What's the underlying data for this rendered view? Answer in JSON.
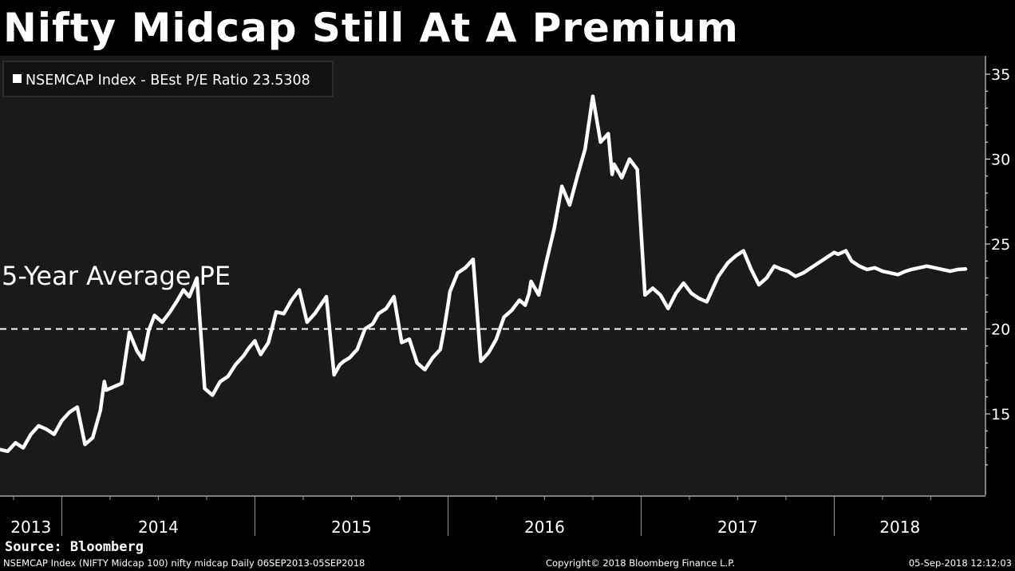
{
  "title": "Nifty Midcap Still At A Premium",
  "source": "Source: Bloomberg",
  "footer": {
    "left": "NSEMCAP Index (NIFTY Midcap 100) nifty midcap  Daily 06SEP2013-05SEP2018",
    "center": "Copyright© 2018 Bloomberg Finance L.P.",
    "right": "05-Sep-2018 12:12:03"
  },
  "colors": {
    "background": "#000000",
    "plot": "#1a1a1a",
    "line": "#ffffff"
  },
  "chart_data": {
    "type": "line",
    "title": "Nifty Midcap Still At A Premium",
    "ylim": [
      10,
      36
    ],
    "yticks": [
      15,
      20,
      25,
      30,
      35
    ],
    "grid": false,
    "legend": "top-left",
    "x_range": [
      2013.68,
      2018.68
    ],
    "year_labels": [
      "2013",
      "2014",
      "2015",
      "2016",
      "2017",
      "2018"
    ],
    "series": [
      {
        "name": "NSEMCAP Index - BEst P/E Ratio 23.5308",
        "last_value": 23.5308,
        "x": [
          2013.68,
          2013.72,
          2013.76,
          2013.8,
          2013.84,
          2013.88,
          2013.92,
          2013.96,
          2014.0,
          2014.04,
          2014.08,
          2014.12,
          2014.16,
          2014.2,
          2014.22,
          2014.23,
          2014.27,
          2014.31,
          2014.35,
          2014.39,
          2014.42,
          2014.45,
          2014.48,
          2014.52,
          2014.56,
          2014.6,
          2014.63,
          2014.66,
          2014.7,
          2014.74,
          2014.78,
          2014.82,
          2014.86,
          2014.9,
          2014.94,
          2014.97,
          2015.0,
          2015.01,
          2015.03,
          2015.07,
          2015.11,
          2015.15,
          2015.19,
          2015.23,
          2015.27,
          2015.31,
          2015.34,
          2015.37,
          2015.41,
          2015.44,
          2015.46,
          2015.49,
          2015.53,
          2015.57,
          2015.61,
          2015.64,
          2015.68,
          2015.72,
          2015.76,
          2015.8,
          2015.84,
          2015.88,
          2015.92,
          2015.96,
          2015.98,
          2016.0,
          2016.01,
          2016.05,
          2016.09,
          2016.13,
          2016.17,
          2016.21,
          2016.25,
          2016.29,
          2016.33,
          2016.37,
          2016.4,
          2016.42,
          2016.43,
          2016.47,
          2016.51,
          2016.55,
          2016.59,
          2016.63,
          2016.67,
          2016.71,
          2016.75,
          2016.79,
          2016.83,
          2016.85,
          2016.86,
          2016.9,
          2016.94,
          2016.98,
          2017.02,
          2017.06,
          2017.1,
          2017.14,
          2017.18,
          2017.22,
          2017.26,
          2017.3,
          2017.34,
          2017.38,
          2017.4,
          2017.45,
          2017.49,
          2017.53,
          2017.57,
          2017.61,
          2017.65,
          2017.69,
          2017.73,
          2017.76,
          2017.8,
          2017.84,
          2017.88,
          2017.92,
          2017.96,
          2018.0,
          2018.02,
          2018.06,
          2018.09,
          2018.13,
          2018.17,
          2018.21,
          2018.25,
          2018.29,
          2018.33,
          2018.37,
          2018.4,
          2018.44,
          2018.48,
          2018.52,
          2018.56,
          2018.6,
          2018.64,
          2018.68
        ],
        "y": [
          12.9,
          12.8,
          13.3,
          13.0,
          13.8,
          14.3,
          14.1,
          13.8,
          14.6,
          15.1,
          15.4,
          13.2,
          13.6,
          15.2,
          16.9,
          16.4,
          16.6,
          16.8,
          19.8,
          18.7,
          18.2,
          19.9,
          20.8,
          20.4,
          21.0,
          21.7,
          22.3,
          21.9,
          23.0,
          16.5,
          16.1,
          16.9,
          17.2,
          17.9,
          18.4,
          18.9,
          19.3,
          19.0,
          18.5,
          19.2,
          21.0,
          20.9,
          21.7,
          22.3,
          20.4,
          20.9,
          21.4,
          21.9,
          17.3,
          17.9,
          18.1,
          18.3,
          18.8,
          20.0,
          20.3,
          20.9,
          21.2,
          21.9,
          19.2,
          19.4,
          18.0,
          17.6,
          18.3,
          18.8,
          20.0,
          21.4,
          22.2,
          23.3,
          23.6,
          24.1,
          18.1,
          18.6,
          19.4,
          20.7,
          21.1,
          21.7,
          21.4,
          22.1,
          22.8,
          22.0,
          24.0,
          25.9,
          28.4,
          27.3,
          29.0,
          30.6,
          33.7,
          31.0,
          31.5,
          29.1,
          29.7,
          28.9,
          30.0,
          29.4,
          22.0,
          22.4,
          22.0,
          21.2,
          22.1,
          22.7,
          22.1,
          21.8,
          21.6,
          22.6,
          23.1,
          23.9,
          24.3,
          24.6,
          23.5,
          22.6,
          23.0,
          23.7,
          23.5,
          23.4,
          23.1,
          23.3,
          23.6,
          23.9,
          24.2,
          24.5,
          24.4,
          24.6,
          24.0,
          23.7,
          23.5,
          23.6,
          23.4,
          23.3,
          23.2,
          23.4,
          23.5,
          23.6,
          23.7,
          23.6,
          23.5,
          23.4,
          23.5,
          23.53
        ]
      }
    ],
    "reference_lines": [
      {
        "label": "5-Year Average PE",
        "value": 20,
        "style": "dashed"
      }
    ]
  }
}
